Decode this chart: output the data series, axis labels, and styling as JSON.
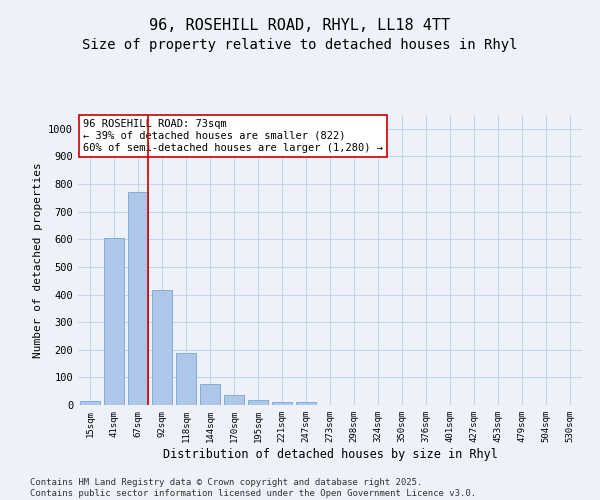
{
  "title_line1": "96, ROSEHILL ROAD, RHYL, LL18 4TT",
  "title_line2": "Size of property relative to detached houses in Rhyl",
  "xlabel": "Distribution of detached houses by size in Rhyl",
  "ylabel": "Number of detached properties",
  "categories": [
    "15sqm",
    "41sqm",
    "67sqm",
    "92sqm",
    "118sqm",
    "144sqm",
    "170sqm",
    "195sqm",
    "221sqm",
    "247sqm",
    "273sqm",
    "298sqm",
    "324sqm",
    "350sqm",
    "376sqm",
    "401sqm",
    "427sqm",
    "453sqm",
    "479sqm",
    "504sqm",
    "530sqm"
  ],
  "values": [
    15,
    605,
    770,
    415,
    190,
    75,
    38,
    18,
    12,
    11,
    0,
    0,
    0,
    0,
    0,
    0,
    0,
    0,
    0,
    0,
    0
  ],
  "bar_color": "#aec6e8",
  "bar_edge_color": "#6fa8d6",
  "vline_color": "#cc0000",
  "vline_x": 2.5,
  "annotation_text": "96 ROSEHILL ROAD: 73sqm\n← 39% of detached houses are smaller (822)\n60% of semi-detached houses are larger (1,280) →",
  "annotation_box_color": "#ffffff",
  "annotation_box_edge_color": "#cc0000",
  "ylim": [
    0,
    1050
  ],
  "yticks": [
    0,
    100,
    200,
    300,
    400,
    500,
    600,
    700,
    800,
    900,
    1000
  ],
  "grid_color": "#c8d4e8",
  "bg_color": "#eef2f8",
  "footer_text": "Contains HM Land Registry data © Crown copyright and database right 2025.\nContains public sector information licensed under the Open Government Licence v3.0.",
  "title_fontsize": 11,
  "subtitle_fontsize": 10,
  "annotation_fontsize": 7.5,
  "footer_fontsize": 6.5,
  "xlabel_fontsize": 8.5,
  "ylabel_fontsize": 8,
  "xtick_fontsize": 6.5,
  "ytick_fontsize": 7.5
}
